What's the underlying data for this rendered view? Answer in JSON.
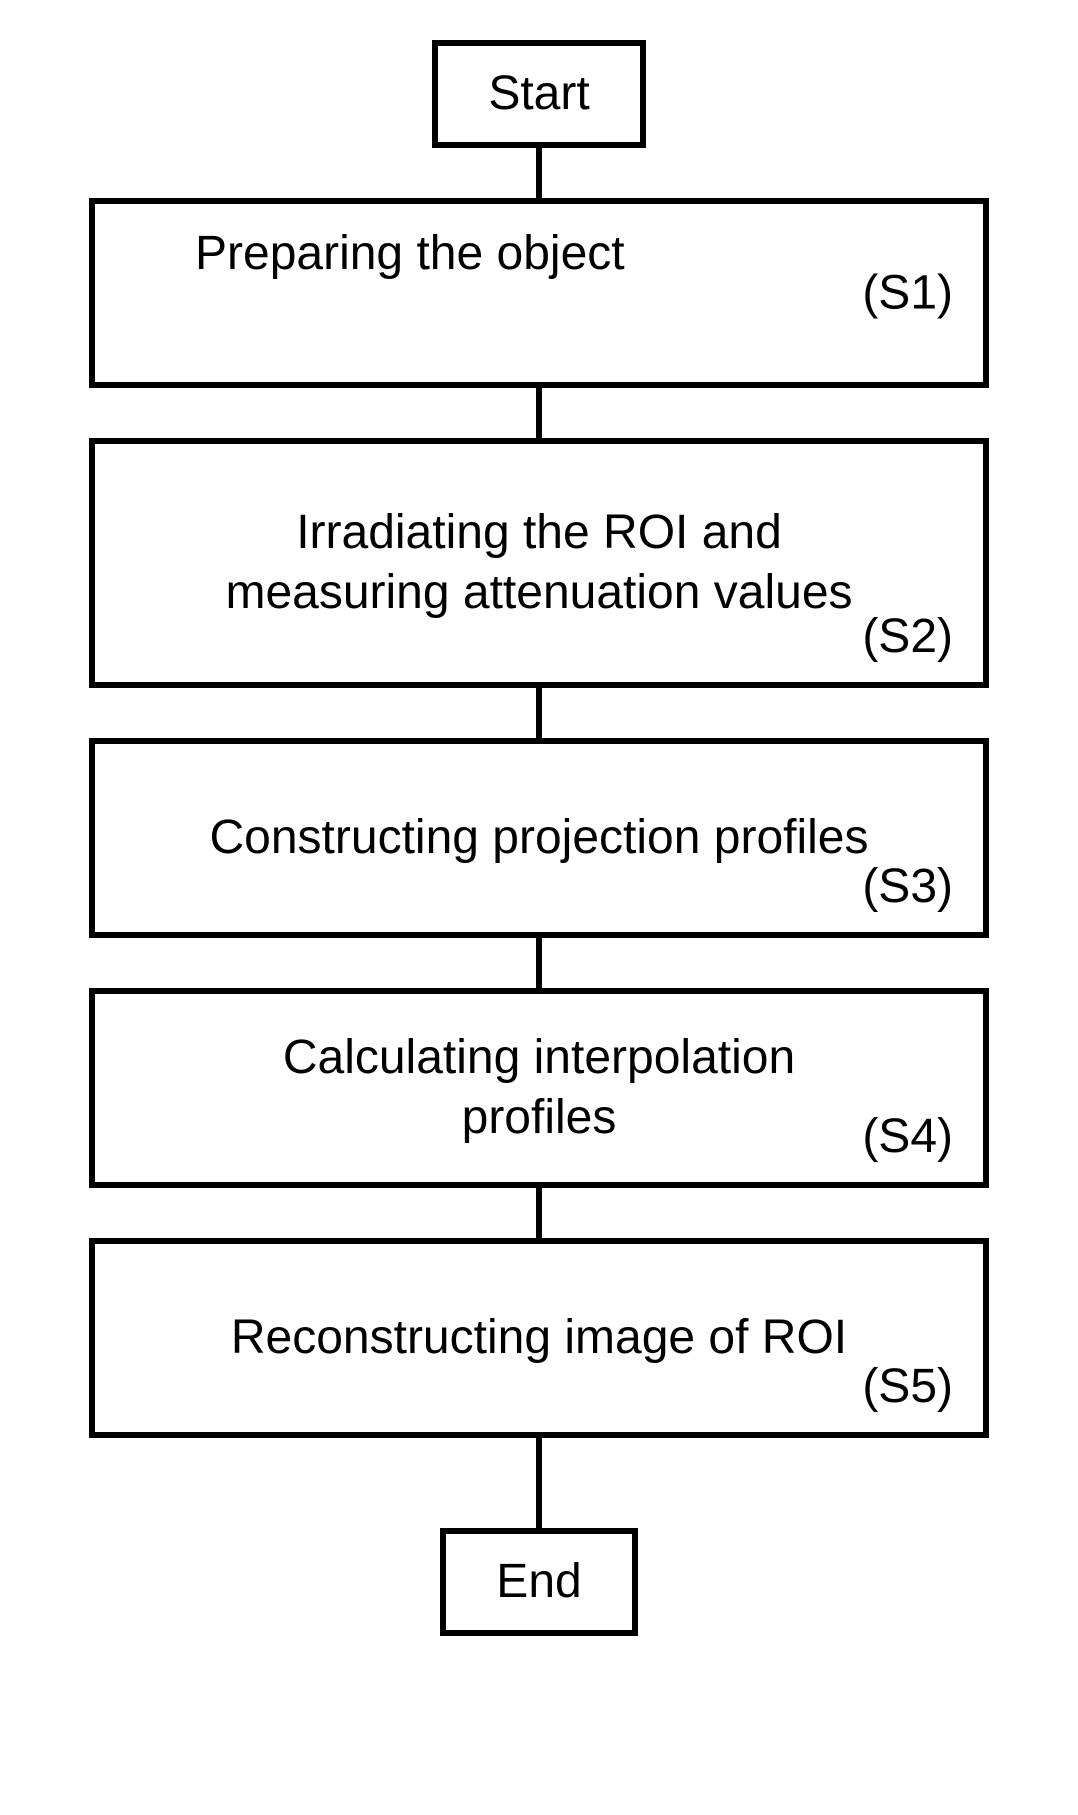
{
  "flowchart": {
    "type": "flowchart",
    "background_color": "#ffffff",
    "border_color": "#000000",
    "border_width": 6,
    "text_color": "#000000",
    "font_size": 48,
    "connector_color": "#000000",
    "connector_width": 6,
    "nodes": {
      "start": {
        "label": "Start",
        "type": "terminal"
      },
      "s1": {
        "text": "Preparing the object",
        "step": "(S1)",
        "type": "process"
      },
      "s2": {
        "text": "Irradiating the ROI and measuring attenuation values",
        "step": "(S2)",
        "type": "process"
      },
      "s3": {
        "text": "Constructing projection profiles",
        "step": "(S3)",
        "type": "process"
      },
      "s4": {
        "text": "Calculating interpolation profiles",
        "step": "(S4)",
        "type": "process"
      },
      "s5": {
        "text": "Reconstructing image of ROI",
        "step": "(S5)",
        "type": "process"
      },
      "end": {
        "label": "End",
        "type": "terminal"
      }
    },
    "edges": [
      {
        "from": "start",
        "to": "s1"
      },
      {
        "from": "s1",
        "to": "s2"
      },
      {
        "from": "s2",
        "to": "s3"
      },
      {
        "from": "s3",
        "to": "s4"
      },
      {
        "from": "s4",
        "to": "s5"
      },
      {
        "from": "s5",
        "to": "end"
      }
    ]
  }
}
